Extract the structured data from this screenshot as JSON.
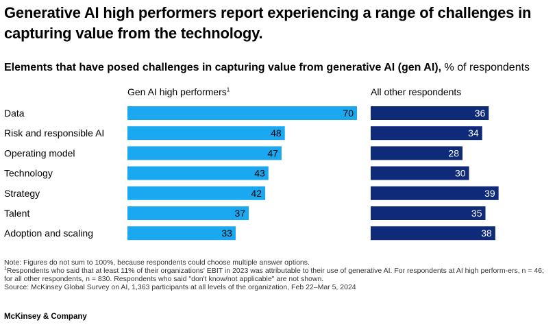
{
  "title": "Generative AI high performers report experiencing a range of challenges in capturing value from the technology.",
  "subtitle_bold": "Elements that have posed challenges in capturing value from generative AI (gen AI),",
  "subtitle_rest": " % of respondents",
  "chart_data": {
    "type": "bar",
    "orientation": "horizontal",
    "categories": [
      "Data",
      "Risk and responsible AI",
      "Operating model",
      "Technology",
      "Strategy",
      "Talent",
      "Adoption and scaling"
    ],
    "series": [
      {
        "name": "Gen AI high performers",
        "footnote_marker": "1",
        "color": "#1aa9f0",
        "label_color": "#000000",
        "values": [
          70,
          48,
          47,
          43,
          42,
          37,
          33
        ]
      },
      {
        "name": "All other respondents",
        "color": "#0e2a78",
        "label_color": "#ffffff",
        "values": [
          36,
          34,
          28,
          30,
          39,
          35,
          38
        ]
      }
    ]
  },
  "notes": {
    "note": "Note: Figures do not sum to 100%, because respondents could choose multiple answer options.",
    "footnote_marker": "1",
    "footnote": "Respondents who said that at least 11% of their organizations' EBIT in 2023 was attributable to their use of generative AI. For respondents at AI high perform-ers, n = 46; for all other respondents, n = 830. Respondents who said \"don't know/not applicable\" are not shown.",
    "source": "Source: McKinsey Global Survey on AI, 1,363 participants at all levels of the organization, Feb 22–Mar 5, 2024"
  },
  "brand": "McKinsey & Company"
}
